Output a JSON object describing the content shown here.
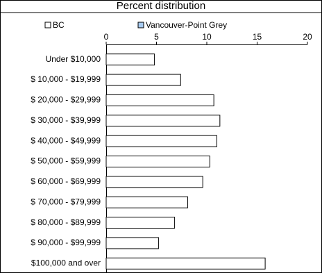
{
  "chart_data": {
    "type": "bar",
    "orientation": "horizontal",
    "title": "Percent distribution",
    "categories": [
      "Under $10,000",
      "$ 10,000 - $19,999",
      "$ 20,000 - $29,999",
      "$ 30,000 - $39,999",
      "$ 40,000 - $49,999",
      "$ 50,000 - $59,999",
      "$ 60,000 - $69,999",
      "$ 70,000 - $79,999",
      "$ 80,000 - $89,999",
      "$ 90,000 - $99,999",
      "$100,000 and over"
    ],
    "series": [
      {
        "name": "BC",
        "color": "#ffffff",
        "values": [
          4.8,
          7.4,
          10.7,
          11.3,
          11.0,
          10.3,
          9.6,
          8.1,
          6.8,
          5.2,
          15.8
        ]
      },
      {
        "name": "Vancouver-Point Grey",
        "color": "#a6caf0",
        "values": [
          null,
          null,
          null,
          null,
          null,
          null,
          null,
          null,
          null,
          null,
          null
        ]
      }
    ],
    "xlim": [
      0,
      20
    ],
    "xticks": [
      0,
      5,
      10,
      15,
      20
    ]
  }
}
